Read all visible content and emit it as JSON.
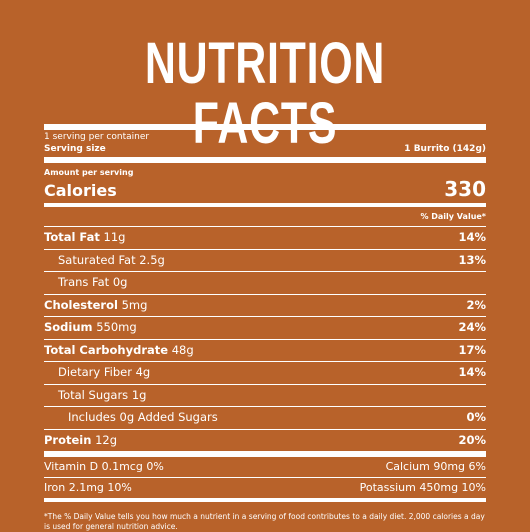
{
  "title": "NUTRITION FACTS",
  "servings_per_container": "1 serving per container",
  "serving_size_label": "Serving size",
  "serving_size_value": "1 Burrito (142g)",
  "amount_per_serving": "Amount per serving",
  "calories_label": "Calories",
  "calories_value": "330",
  "daily_value_header": "% Daily Value*",
  "nutrients": [
    {
      "name": "Total Fat",
      "amount": "11g",
      "dv": "14%"
    },
    {
      "name": "Saturated Fat 2.5g",
      "amount": "",
      "dv": "13%"
    },
    {
      "name": "Trans Fat 0g",
      "amount": "",
      "dv": ""
    },
    {
      "name": "Cholesterol",
      "amount": "5mg",
      "dv": "2%"
    },
    {
      "name": "Sodium",
      "amount": "550mg",
      "dv": "24%"
    },
    {
      "name": "Total Carbohydrate",
      "amount": "48g",
      "dv": "17%"
    },
    {
      "name": "Dietary Fiber 4g",
      "amount": "",
      "dv": "14%"
    },
    {
      "name": "Total Sugars 1g",
      "amount": "",
      "dv": ""
    },
    {
      "name": "Includes 0g Added Sugars",
      "amount": "",
      "dv": "0%"
    },
    {
      "name": "Protein",
      "amount": "12g",
      "dv": "20%"
    }
  ],
  "vitamins": [
    {
      "left": "Vitamin D 0.1mcg 0%",
      "right": "Calcium 90mg 6%"
    },
    {
      "left": "Iron 2.1mg 10%",
      "right": "Potassium 450mg 10%"
    }
  ],
  "footnote": "*The % Daily Value tells you how much a nutrient in a serving of food contributes to a daily diet. 2,000 calories a day is used for general nutrition advice."
}
